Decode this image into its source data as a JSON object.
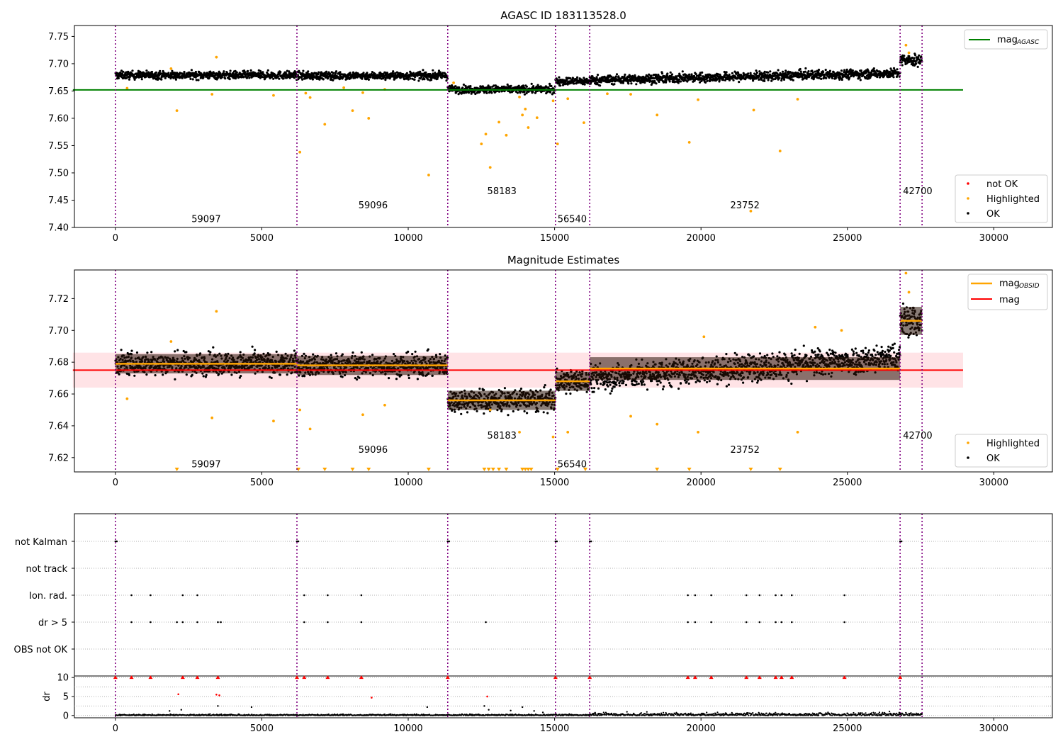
{
  "colors": {
    "ok": "#000000",
    "highlighted": "#ffa500",
    "not_ok": "#ff0000",
    "agasc_line": "#008000",
    "mag_line": "#ff0000",
    "obsid_line": "#ffa500",
    "band": "#ffc0c8",
    "obsid_sep": "#800080",
    "grid": "#b0b0b0",
    "obsid_bar": "#2a1208"
  },
  "chart_data": [
    {
      "type": "scatter",
      "title": "AGASC ID 183113528.0",
      "xlim": [
        -1400,
        32000
      ],
      "ylim": [
        7.4,
        7.77
      ],
      "xticks": [
        0,
        5000,
        10000,
        15000,
        20000,
        25000,
        30000
      ],
      "yticks": [
        7.4,
        7.45,
        7.5,
        7.55,
        7.6,
        7.65,
        7.7,
        7.75
      ],
      "obsid_boundaries": [
        0,
        6200,
        11350,
        15030,
        16200,
        26800,
        27550
      ],
      "obsid_labels": [
        {
          "text": "59097",
          "x": 3100,
          "y": 7.41
        },
        {
          "text": "59096",
          "x": 8800,
          "y": 7.435
        },
        {
          "text": "58183",
          "x": 13200,
          "y": 7.461
        },
        {
          "text": "56540",
          "x": 15600,
          "y": 7.41
        },
        {
          "text": "23752",
          "x": 21500,
          "y": 7.435
        },
        {
          "text": "42700",
          "x": 27400,
          "y": 7.461
        }
      ],
      "hline": {
        "name": "mag_AGASC",
        "y": 7.652,
        "x_range": [
          0,
          28950
        ]
      },
      "ok_segments": [
        {
          "x0": 0,
          "x1": 6200,
          "y_start": 7.679,
          "y_end": 7.679,
          "spread": 0.011
        },
        {
          "x0": 6200,
          "x1": 11350,
          "y_start": 7.678,
          "y_end": 7.678,
          "spread": 0.011
        },
        {
          "x0": 11350,
          "x1": 15030,
          "y_start": 7.653,
          "y_end": 7.653,
          "spread": 0.011
        },
        {
          "x0": 15030,
          "x1": 16200,
          "y_start": 7.668,
          "y_end": 7.668,
          "spread": 0.011
        },
        {
          "x0": 16200,
          "x1": 26800,
          "y_start": 7.67,
          "y_end": 7.683,
          "spread": 0.013
        },
        {
          "x0": 26800,
          "x1": 27550,
          "y_start": 7.706,
          "y_end": 7.706,
          "spread": 0.016
        }
      ],
      "highlighted_points": [
        [
          400,
          7.655
        ],
        [
          1900,
          7.691
        ],
        [
          2100,
          7.614
        ],
        [
          3300,
          7.644
        ],
        [
          3450,
          7.712
        ],
        [
          5400,
          7.642
        ],
        [
          6300,
          7.538
        ],
        [
          6500,
          7.646
        ],
        [
          6650,
          7.638
        ],
        [
          7150,
          7.589
        ],
        [
          7800,
          7.656
        ],
        [
          8100,
          7.614
        ],
        [
          8450,
          7.647
        ],
        [
          8650,
          7.6
        ],
        [
          9200,
          7.653
        ],
        [
          10700,
          7.496
        ],
        [
          11550,
          7.665
        ],
        [
          12500,
          7.553
        ],
        [
          12650,
          7.571
        ],
        [
          12800,
          7.51
        ],
        [
          13100,
          7.593
        ],
        [
          13350,
          7.569
        ],
        [
          13800,
          7.639
        ],
        [
          13900,
          7.606
        ],
        [
          14000,
          7.617
        ],
        [
          14100,
          7.583
        ],
        [
          14400,
          7.601
        ],
        [
          14950,
          7.632
        ],
        [
          15100,
          7.553
        ],
        [
          15450,
          7.636
        ],
        [
          16000,
          7.592
        ],
        [
          16800,
          7.645
        ],
        [
          17600,
          7.644
        ],
        [
          18500,
          7.606
        ],
        [
          19600,
          7.556
        ],
        [
          19900,
          7.634
        ],
        [
          21800,
          7.615
        ],
        [
          21700,
          7.43
        ],
        [
          22700,
          7.54
        ],
        [
          23300,
          7.635
        ],
        [
          27000,
          7.734
        ],
        [
          27100,
          7.72
        ]
      ],
      "legend": {
        "items": [
          "not OK",
          "Highlighted",
          "OK"
        ],
        "mag_label": "mag",
        "mag_sub": "AGASC"
      }
    },
    {
      "type": "scatter",
      "title": "Magnitude Estimates",
      "xlim": [
        -1400,
        32000
      ],
      "ylim": [
        7.611,
        7.738
      ],
      "xticks": [
        0,
        5000,
        10000,
        15000,
        20000,
        25000,
        30000
      ],
      "yticks": [
        7.62,
        7.64,
        7.66,
        7.68,
        7.7,
        7.72
      ],
      "obsid_boundaries": [
        0,
        6200,
        11350,
        15030,
        16200,
        26800,
        27550
      ],
      "obsid_labels": [
        {
          "text": "59097",
          "x": 3100,
          "y": 7.614
        },
        {
          "text": "59096",
          "x": 8800,
          "y": 7.623
        },
        {
          "text": "58183",
          "x": 13200,
          "y": 7.632
        },
        {
          "text": "56540",
          "x": 15600,
          "y": 7.614
        },
        {
          "text": "23752",
          "x": 21500,
          "y": 7.623
        },
        {
          "text": "42700",
          "x": 27400,
          "y": 7.632
        }
      ],
      "mag": {
        "y": 7.675,
        "band": [
          7.664,
          7.686
        ],
        "x_range": [
          0,
          28950
        ]
      },
      "obsid_mags": [
        {
          "x0": 0,
          "x1": 6200,
          "y": 7.679
        },
        {
          "x0": 6200,
          "x1": 11350,
          "y": 7.678
        },
        {
          "x0": 11350,
          "x1": 15030,
          "y": 7.656
        },
        {
          "x0": 15030,
          "x1": 16200,
          "y": 7.668
        },
        {
          "x0": 16200,
          "x1": 26800,
          "y": 7.676
        },
        {
          "x0": 26800,
          "x1": 27550,
          "y": 7.706
        }
      ],
      "ok_segments": [
        {
          "x0": 0,
          "x1": 6200,
          "y_start": 7.679,
          "y_end": 7.679,
          "spread": 0.011
        },
        {
          "x0": 6200,
          "x1": 11350,
          "y_start": 7.678,
          "y_end": 7.678,
          "spread": 0.011
        },
        {
          "x0": 11350,
          "x1": 15030,
          "y_start": 7.656,
          "y_end": 7.656,
          "spread": 0.011
        },
        {
          "x0": 15030,
          "x1": 16200,
          "y_start": 7.668,
          "y_end": 7.668,
          "spread": 0.011
        },
        {
          "x0": 16200,
          "x1": 26800,
          "y_start": 7.67,
          "y_end": 7.683,
          "spread": 0.013
        },
        {
          "x0": 26800,
          "x1": 27550,
          "y_start": 7.706,
          "y_end": 7.706,
          "spread": 0.016
        }
      ],
      "highlighted_points": [
        [
          400,
          7.657
        ],
        [
          1900,
          7.693
        ],
        [
          3300,
          7.645
        ],
        [
          3450,
          7.712
        ],
        [
          5400,
          7.643
        ],
        [
          6300,
          7.65
        ],
        [
          6650,
          7.638
        ],
        [
          8450,
          7.647
        ],
        [
          9200,
          7.653
        ],
        [
          12800,
          7.65
        ],
        [
          13800,
          7.636
        ],
        [
          14950,
          7.633
        ],
        [
          15450,
          7.636
        ],
        [
          17600,
          7.646
        ],
        [
          18500,
          7.641
        ],
        [
          19900,
          7.636
        ],
        [
          23300,
          7.636
        ],
        [
          20100,
          7.696
        ],
        [
          23900,
          7.702
        ],
        [
          24800,
          7.7
        ],
        [
          27000,
          7.736
        ],
        [
          27100,
          7.724
        ]
      ],
      "clipped_x": [
        2100,
        6250,
        7150,
        8100,
        8650,
        10700,
        12600,
        12750,
        12900,
        13100,
        13350,
        13900,
        14000,
        14100,
        14200,
        15100,
        16050,
        18500,
        19600,
        21700,
        22700
      ],
      "legend": {
        "items": [
          "Highlighted",
          "OK"
        ],
        "obsid_label": "mag",
        "obsid_sub": "OBSID",
        "mag_label": "mag"
      }
    },
    {
      "type": "scatter",
      "title": "",
      "xlim": [
        -1400,
        32000
      ],
      "xticks": [
        0,
        5000,
        10000,
        15000,
        20000,
        25000,
        30000
      ],
      "obsid_boundaries": [
        0,
        6200,
        11350,
        15030,
        16200,
        26800,
        27550
      ],
      "categories": [
        "not Kalman",
        "not track",
        "Ion. rad.",
        "dr > 5",
        "OBS not OK"
      ],
      "flag_points": {
        "not Kalman": [
          0,
          6200,
          11350,
          15030,
          16200,
          26800
        ],
        "not track": [],
        "Ion. rad.": [
          550,
          1200,
          2300,
          2800,
          6450,
          7250,
          8400,
          19550,
          19800,
          20350,
          21550,
          22000,
          22550,
          22750,
          23100,
          24900
        ],
        "dr > 5": [
          550,
          1200,
          2100,
          2300,
          2800,
          3500,
          3600,
          6450,
          7250,
          8400,
          12650,
          19550,
          19800,
          20350,
          21550,
          22000,
          22550,
          22750,
          23100,
          24900
        ],
        "OBS not OK": []
      },
      "dr": {
        "ylabel": "dr",
        "ylim": [
          0,
          10
        ],
        "yticks": [
          0,
          5,
          10
        ],
        "clipped_x": [
          0,
          550,
          1200,
          2300,
          2800,
          3500,
          6200,
          6450,
          7250,
          8400,
          11350,
          15030,
          16200,
          19550,
          19800,
          20350,
          21550,
          22000,
          22550,
          22750,
          23100,
          24900,
          26800
        ],
        "red_points": [
          [
            2150,
            5.6
          ],
          [
            3450,
            5.5
          ],
          [
            3550,
            5.3
          ],
          [
            8750,
            4.7
          ],
          [
            12700,
            5.0
          ]
        ],
        "black_points": [
          [
            1850,
            1.2
          ],
          [
            2250,
            1.5
          ],
          [
            3500,
            2.5
          ],
          [
            4650,
            2.2
          ],
          [
            10650,
            2.2
          ],
          [
            12600,
            2.5
          ],
          [
            12750,
            1.5
          ],
          [
            13500,
            1.3
          ],
          [
            13900,
            2.2
          ],
          [
            14300,
            1.2
          ],
          [
            14600,
            0.8
          ]
        ],
        "baseline_segments": [
          [
            0,
            16200,
            0.15
          ],
          [
            16200,
            27550,
            0.35
          ]
        ]
      }
    }
  ]
}
